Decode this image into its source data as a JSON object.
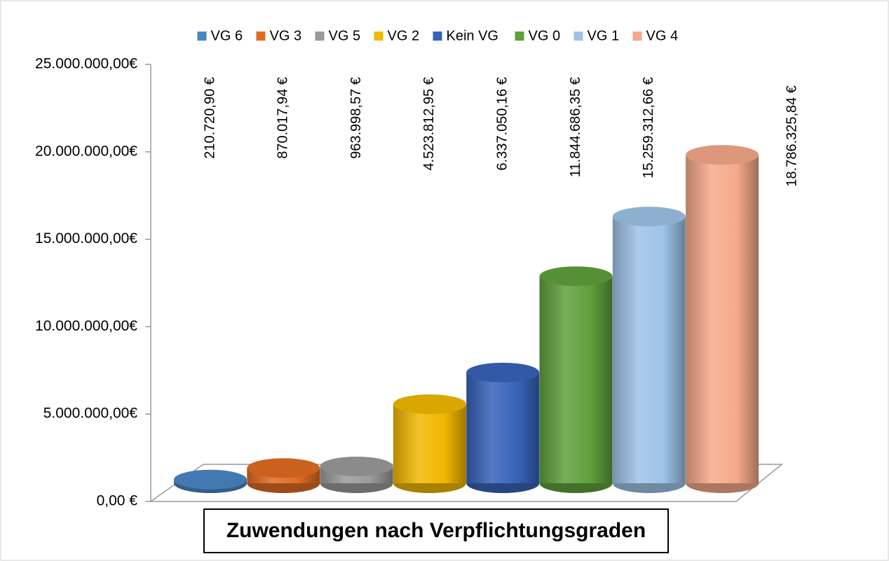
{
  "chart_data": {
    "type": "bar",
    "title": "Zuwendungen nach Verpflichtungsgraden",
    "series": [
      {
        "name": "VG 6",
        "color": "#4a86c5",
        "values": [
          210720.9
        ],
        "value_labels": [
          "210.720,90 €"
        ]
      },
      {
        "name": "VG 3",
        "color": "#e06c22",
        "values": [
          870017.94
        ],
        "value_labels": [
          "870.017,94 €"
        ]
      },
      {
        "name": "VG 5",
        "color": "#9a9a9a",
        "values": [
          963998.57
        ],
        "value_labels": [
          "963.998,57 €"
        ]
      },
      {
        "name": "VG 2",
        "color": "#f2b800",
        "values": [
          4523812.95
        ],
        "value_labels": [
          "4.523.812,95 €"
        ]
      },
      {
        "name": "Kein VG",
        "color": "#3763b8",
        "values": [
          6337050.16
        ],
        "value_labels": [
          "6.337.050,16 €"
        ]
      },
      {
        "name": "VG 0",
        "color": "#5fa03c",
        "values": [
          11844686.35
        ],
        "value_labels": [
          "11.844.686,35 €"
        ]
      },
      {
        "name": "VG 1",
        "color": "#9dc3e8",
        "values": [
          15259312.66
        ],
        "value_labels": [
          "15.259.312,66 €"
        ]
      },
      {
        "name": "VG 4",
        "color": "#f5a98a",
        "values": [
          18786325.84
        ],
        "value_labels": [
          "18.786.325,84 €"
        ]
      }
    ],
    "ylim": [
      0,
      25000000
    ],
    "yticks": [
      {
        "value": 0,
        "label": "0,00 €"
      },
      {
        "value": 5000000,
        "label": "5.000.000,00€"
      },
      {
        "value": 10000000,
        "label": "10.000.000,00€"
      },
      {
        "value": 15000000,
        "label": "15.000.000,00€"
      },
      {
        "value": 20000000,
        "label": "20.000.000,00€"
      },
      {
        "value": 25000000,
        "label": "25.000.000,00€"
      }
    ],
    "legend": "top"
  }
}
